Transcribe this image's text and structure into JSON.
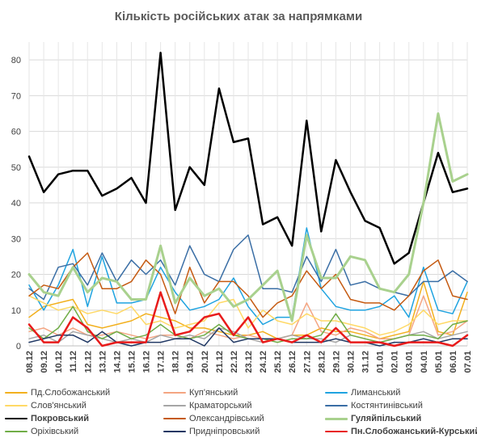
{
  "chart_data": {
    "type": "line",
    "title": "Кількість російських атак за напрямками",
    "xlabel": "",
    "ylabel": "",
    "ylim": [
      0,
      85
    ],
    "yticks": [
      0,
      10,
      20,
      30,
      40,
      50,
      60,
      70,
      80
    ],
    "grid": true,
    "legend_position": "bottom",
    "x": [
      "08.12",
      "09.12",
      "10.12",
      "11.12",
      "12.12",
      "13.12",
      "14.12",
      "15.12",
      "16.12",
      "17.12",
      "18.12",
      "19.12",
      "20.12",
      "21.12",
      "22.12",
      "23.12",
      "24.12",
      "25.12",
      "26.12",
      "27.12",
      "28.12",
      "29.12",
      "30.12",
      "31.12",
      "01.01",
      "02.01",
      "03.01",
      "04.01",
      "05.01",
      "06.01",
      "07.01"
    ],
    "series": [
      {
        "name": "Пд.Слобожанський",
        "color": "#f2b01e",
        "width": 1.5,
        "values": [
          8,
          11,
          12,
          13,
          6,
          5,
          6,
          7,
          9,
          8,
          7,
          5,
          5,
          4,
          3,
          3,
          4,
          2,
          3,
          3,
          5,
          4,
          4,
          3,
          2,
          3,
          4,
          18,
          4,
          3,
          15
        ]
      },
      {
        "name": "Куп'янський",
        "color": "#f4a582",
        "width": 1.5,
        "values": [
          4,
          5,
          3,
          5,
          3,
          3,
          4,
          3,
          2,
          3,
          3,
          2,
          4,
          3,
          2,
          3,
          2,
          2,
          3,
          12,
          4,
          3,
          5,
          4,
          2,
          2,
          3,
          14,
          3,
          4,
          7
        ]
      },
      {
        "name": "Лиманський",
        "color": "#1fa3e0",
        "width": 1.5,
        "values": [
          17,
          10,
          17,
          27,
          11,
          25,
          12,
          12,
          13,
          22,
          15,
          10,
          11,
          13,
          19,
          11,
          6,
          8,
          8,
          33,
          16,
          11,
          10,
          10,
          11,
          14,
          8,
          22,
          10,
          9,
          18
        ]
      },
      {
        "name": "Слов'янський",
        "color": "#ffd966",
        "width": 1.5,
        "values": [
          14,
          12,
          10,
          11,
          9,
          10,
          9,
          11,
          6,
          7,
          5,
          6,
          7,
          12,
          13,
          5,
          10,
          7,
          6,
          9,
          7,
          7,
          6,
          5,
          3,
          4,
          6,
          10,
          6,
          7,
          7
        ]
      },
      {
        "name": "Краматорський",
        "color": "#a6a6a6",
        "width": 1.5,
        "values": [
          2,
          3,
          1,
          4,
          3,
          2,
          1,
          2,
          1,
          3,
          2,
          3,
          2,
          5,
          4,
          2,
          1,
          2,
          3,
          2,
          2,
          1,
          3,
          2,
          1,
          2,
          3,
          4,
          2,
          3,
          4
        ]
      },
      {
        "name": "Костянтинівський",
        "color": "#3a6ea5",
        "width": 1.5,
        "values": [
          16,
          13,
          22,
          23,
          17,
          26,
          18,
          24,
          20,
          24,
          17,
          28,
          20,
          18,
          27,
          31,
          16,
          16,
          15,
          25,
          18,
          27,
          17,
          18,
          16,
          15,
          14,
          18,
          18,
          21,
          18
        ]
      },
      {
        "name": "Покровський",
        "color": "#000000",
        "width": 2.5,
        "values": [
          53,
          43,
          48,
          49,
          49,
          42,
          44,
          47,
          40,
          82,
          38,
          50,
          45,
          72,
          57,
          58,
          34,
          36,
          28,
          63,
          32,
          52,
          43,
          35,
          33,
          23,
          26,
          40,
          54,
          43,
          44
        ]
      },
      {
        "name": "Олександрівський",
        "color": "#c55a11",
        "width": 1.5,
        "values": [
          14,
          17,
          16,
          22,
          26,
          16,
          16,
          18,
          24,
          20,
          9,
          22,
          12,
          18,
          18,
          14,
          8,
          12,
          14,
          21,
          16,
          20,
          13,
          12,
          12,
          10,
          14,
          21,
          24,
          14,
          13
        ]
      },
      {
        "name": "Гуляйпільський",
        "color": "#a9d18e",
        "width": 3,
        "values": [
          20,
          15,
          14,
          22,
          15,
          19,
          18,
          13,
          13,
          28,
          12,
          19,
          14,
          16,
          11,
          13,
          17,
          21,
          7,
          31,
          19,
          19,
          25,
          24,
          16,
          15,
          20,
          40,
          65,
          46,
          48
        ]
      },
      {
        "name": "Оріхівський",
        "color": "#70ad47",
        "width": 1.5,
        "values": [
          5,
          2,
          5,
          11,
          4,
          2,
          4,
          2,
          3,
          6,
          3,
          2,
          3,
          6,
          3,
          2,
          2,
          1,
          2,
          2,
          3,
          9,
          3,
          2,
          1,
          2,
          3,
          3,
          2,
          6,
          7
        ]
      },
      {
        "name": "Придніпровський",
        "color": "#203864",
        "width": 1.5,
        "values": [
          1,
          2,
          3,
          3,
          1,
          4,
          1,
          0,
          1,
          1,
          2,
          2,
          0,
          5,
          1,
          2,
          2,
          2,
          1,
          1,
          1,
          2,
          1,
          1,
          0,
          1,
          1,
          2,
          1,
          2,
          2
        ]
      },
      {
        "name": "Пн.Слобожанський-Курський",
        "color": "#e81b1b",
        "width": 2.5,
        "values": [
          6,
          1,
          1,
          8,
          5,
          0,
          1,
          1,
          1,
          15,
          3,
          4,
          8,
          9,
          3,
          8,
          1,
          2,
          1,
          3,
          1,
          5,
          1,
          1,
          1,
          0,
          1,
          1,
          1,
          0,
          3
        ]
      }
    ]
  }
}
